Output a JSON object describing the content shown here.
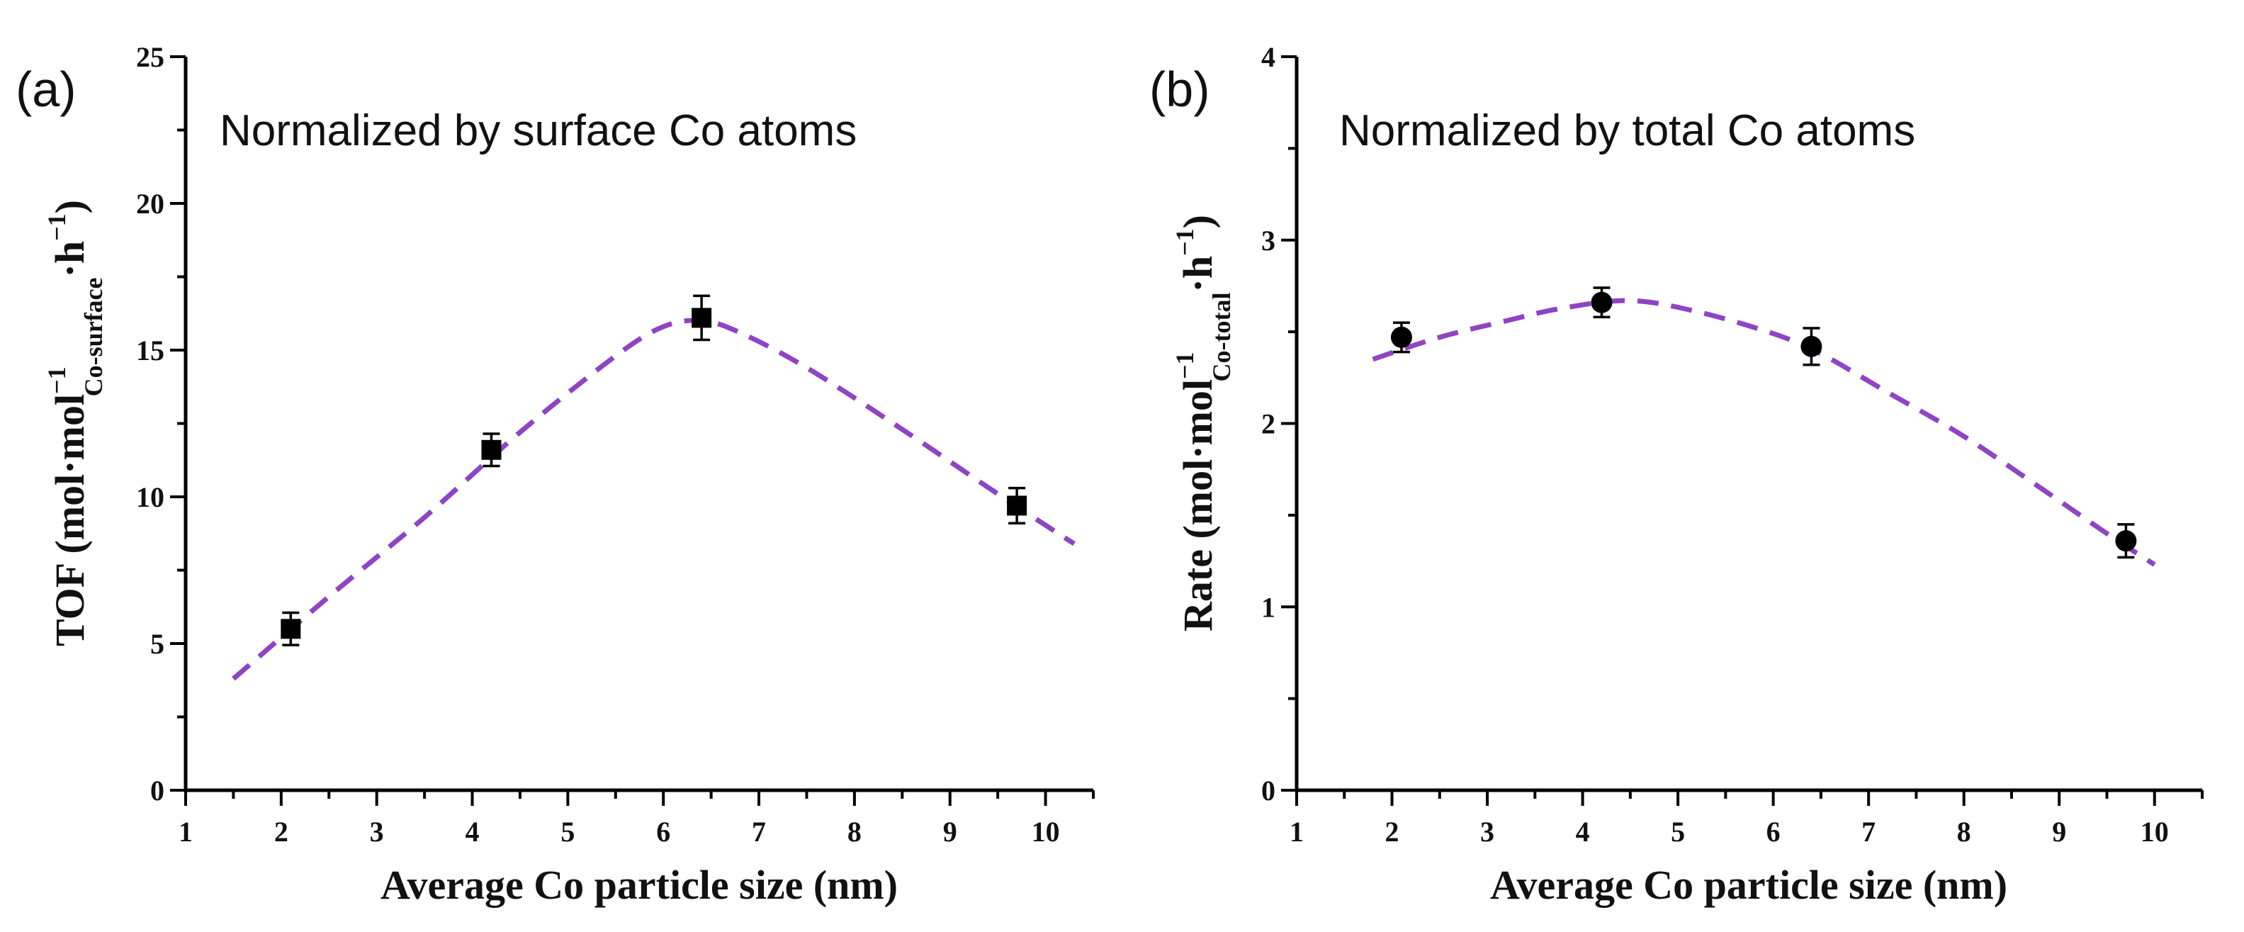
{
  "chart_data": [
    {
      "type": "scatter",
      "panel_label": "(a)",
      "annotation": "Normalized by surface Co atoms",
      "xlabel": "Average Co particle size (nm)",
      "ylabel": {
        "main": "TOF (mol·mol",
        "sup1": "−1",
        "sub": "Co-surface",
        "mid": "·h",
        "sup2": "−1",
        "end": ")"
      },
      "xlim": [
        1,
        10.5
      ],
      "ylim": [
        0,
        25
      ],
      "xticks": [
        "1",
        "2",
        "3",
        "4",
        "5",
        "6",
        "7",
        "8",
        "9",
        "10"
      ],
      "yticks": [
        "0",
        "5",
        "10",
        "15",
        "20",
        "25"
      ],
      "x_minor_step": 0.5,
      "y_minor_step": 2.5,
      "marker": "square",
      "series": [
        {
          "name": "TOF",
          "x": [
            2.1,
            4.2,
            6.4,
            9.7
          ],
          "y": [
            5.5,
            11.6,
            16.1,
            9.7
          ],
          "err": [
            0.55,
            0.55,
            0.75,
            0.6
          ]
        }
      ],
      "fit": {
        "color": "#8e44c4",
        "x": [
          1.5,
          2.5,
          3.5,
          4.5,
          5.5,
          6.0,
          6.4,
          6.8,
          7.5,
          8.5,
          9.5,
          10.3
        ],
        "y": [
          3.8,
          6.6,
          9.3,
          12.2,
          14.8,
          15.8,
          16.0,
          15.6,
          14.4,
          12.3,
          10.1,
          8.4
        ]
      }
    },
    {
      "type": "scatter",
      "panel_label": "(b)",
      "annotation": "Normalized by total Co atoms",
      "xlabel": "Average Co particle size (nm)",
      "ylabel": {
        "main": "Rate (mol·mol",
        "sup1": "−1",
        "sub": "Co-total",
        "mid": "·h",
        "sup2": "−1",
        "end": ")"
      },
      "xlim": [
        1,
        10.5
      ],
      "ylim": [
        0,
        4
      ],
      "xticks": [
        "1",
        "2",
        "3",
        "4",
        "5",
        "6",
        "7",
        "8",
        "9",
        "10"
      ],
      "yticks": [
        "0",
        "1",
        "2",
        "3",
        "4"
      ],
      "x_minor_step": 0.5,
      "y_minor_step": 0.5,
      "marker": "circle",
      "series": [
        {
          "name": "Rate",
          "x": [
            2.1,
            4.2,
            6.4,
            9.7
          ],
          "y": [
            2.47,
            2.66,
            2.42,
            1.36
          ],
          "err": [
            0.08,
            0.08,
            0.1,
            0.09
          ]
        }
      ],
      "fit": {
        "color": "#8e44c4",
        "x": [
          1.8,
          2.5,
          3.2,
          3.8,
          4.5,
          5.2,
          6.0,
          6.5,
          7.2,
          8.0,
          8.8,
          9.5,
          10.0
        ],
        "y": [
          2.35,
          2.47,
          2.56,
          2.63,
          2.67,
          2.61,
          2.49,
          2.38,
          2.17,
          1.93,
          1.65,
          1.4,
          1.23
        ]
      }
    }
  ]
}
